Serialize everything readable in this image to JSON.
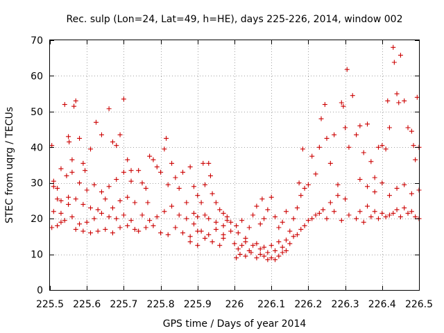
{
  "chart_data": {
    "type": "scatter",
    "title": "Rec. sulp (Lon=24, Lat=49, h=HE), days 225-226, 2014, window 002",
    "xlabel": "GPS time / Days of year 2014",
    "ylabel": "STEC from uqrg / TECUs",
    "xlim": [
      225.5,
      226.5
    ],
    "ylim": [
      0,
      70
    ],
    "xticks": [
      225.5,
      225.6,
      225.7,
      225.8,
      225.9,
      226,
      226.1,
      226.2,
      226.3,
      226.4,
      226.5
    ],
    "xtick_labels": [
      "225.5",
      "225.6",
      "225.7",
      "225.8",
      "225.9",
      "226",
      "226.1",
      "226.2",
      "226.3",
      "226.4",
      "226.5"
    ],
    "yticks": [
      0,
      10,
      20,
      30,
      40,
      50,
      60,
      70
    ],
    "ytick_labels": [
      "0",
      "10",
      "20",
      "30",
      "40",
      "50",
      "60",
      "70"
    ],
    "grid": true,
    "marker": "+",
    "color": "#cc0000",
    "series": [
      {
        "name": "STEC",
        "points": [
          [
            225.505,
            40.5
          ],
          [
            225.51,
            30.5
          ],
          [
            225.52,
            25.5
          ],
          [
            225.53,
            34.0
          ],
          [
            225.54,
            52.0
          ],
          [
            225.55,
            43.0
          ],
          [
            225.552,
            41.5
          ],
          [
            225.56,
            36.5
          ],
          [
            225.565,
            51.5
          ],
          [
            225.57,
            53.0
          ],
          [
            225.58,
            42.5
          ],
          [
            225.59,
            35.5
          ],
          [
            225.595,
            33.5
          ],
          [
            225.61,
            39.5
          ],
          [
            225.625,
            47.0
          ],
          [
            225.64,
            43.5
          ],
          [
            225.66,
            50.8
          ],
          [
            225.67,
            41.5
          ],
          [
            225.68,
            40.5
          ],
          [
            225.69,
            43.5
          ],
          [
            225.7,
            53.5
          ],
          [
            225.71,
            36.5
          ],
          [
            225.72,
            33.5
          ],
          [
            225.51,
            29.0
          ],
          [
            225.52,
            28.5
          ],
          [
            225.53,
            25.0
          ],
          [
            225.545,
            32.0
          ],
          [
            225.55,
            26.0
          ],
          [
            225.56,
            33.0
          ],
          [
            225.58,
            30.0
          ],
          [
            225.6,
            28.0
          ],
          [
            225.62,
            29.5
          ],
          [
            225.64,
            27.5
          ],
          [
            225.66,
            29.0
          ],
          [
            225.68,
            31.0
          ],
          [
            225.7,
            33.0
          ],
          [
            225.72,
            30.5
          ],
          [
            225.51,
            22.0
          ],
          [
            225.53,
            21.5
          ],
          [
            225.55,
            24.0
          ],
          [
            225.57,
            25.5
          ],
          [
            225.59,
            24.0
          ],
          [
            225.61,
            23.0
          ],
          [
            225.63,
            22.5
          ],
          [
            225.65,
            25.5
          ],
          [
            225.67,
            23.0
          ],
          [
            225.69,
            25.0
          ],
          [
            225.71,
            26.0
          ],
          [
            225.73,
            24.5
          ],
          [
            225.505,
            17.5
          ],
          [
            225.52,
            18.0
          ],
          [
            225.54,
            19.5
          ],
          [
            225.56,
            20.5
          ],
          [
            225.58,
            18.5
          ],
          [
            225.6,
            19.0
          ],
          [
            225.62,
            20.0
          ],
          [
            225.64,
            21.5
          ],
          [
            225.66,
            20.5
          ],
          [
            225.68,
            20.0
          ],
          [
            225.7,
            21.0
          ],
          [
            225.72,
            19.5
          ],
          [
            225.53,
            19.0
          ],
          [
            225.57,
            17.0
          ],
          [
            225.59,
            16.5
          ],
          [
            225.61,
            16.0
          ],
          [
            225.63,
            16.5
          ],
          [
            225.65,
            17.0
          ],
          [
            225.67,
            16.0
          ],
          [
            225.69,
            17.5
          ],
          [
            225.71,
            18.0
          ],
          [
            225.73,
            17.0
          ],
          [
            225.74,
            33.5
          ],
          [
            225.75,
            30.0
          ],
          [
            225.76,
            28.5
          ],
          [
            225.765,
            24.5
          ],
          [
            225.77,
            37.5
          ],
          [
            225.78,
            36.5
          ],
          [
            225.79,
            34.5
          ],
          [
            225.8,
            33.0
          ],
          [
            225.81,
            39.5
          ],
          [
            225.815,
            42.5
          ],
          [
            225.82,
            29.5
          ],
          [
            225.83,
            35.5
          ],
          [
            225.84,
            31.5
          ],
          [
            225.85,
            28.5
          ],
          [
            225.86,
            33.0
          ],
          [
            225.87,
            24.5
          ],
          [
            225.88,
            34.5
          ],
          [
            225.89,
            29.0
          ],
          [
            225.75,
            21.0
          ],
          [
            225.77,
            19.5
          ],
          [
            225.79,
            20.5
          ],
          [
            225.81,
            22.0
          ],
          [
            225.83,
            23.5
          ],
          [
            225.85,
            21.0
          ],
          [
            225.87,
            20.0
          ],
          [
            225.89,
            21.5
          ],
          [
            225.74,
            16.5
          ],
          [
            225.76,
            17.5
          ],
          [
            225.78,
            18.0
          ],
          [
            225.8,
            16.0
          ],
          [
            225.82,
            15.5
          ],
          [
            225.84,
            17.5
          ],
          [
            225.86,
            16.0
          ],
          [
            225.88,
            15.0
          ],
          [
            225.9,
            16.5
          ],
          [
            225.9,
            26.5
          ],
          [
            225.91,
            24.5
          ],
          [
            225.915,
            35.5
          ],
          [
            225.92,
            29.5
          ],
          [
            225.93,
            35.5
          ],
          [
            225.935,
            32.0
          ],
          [
            225.94,
            27.0
          ],
          [
            225.95,
            24.5
          ],
          [
            225.96,
            22.5
          ],
          [
            225.97,
            21.5
          ],
          [
            225.98,
            20.5
          ],
          [
            225.99,
            19.0
          ],
          [
            225.9,
            20.5
          ],
          [
            225.92,
            21.0
          ],
          [
            225.93,
            20.0
          ],
          [
            225.95,
            19.0
          ],
          [
            225.97,
            18.0
          ],
          [
            225.98,
            19.5
          ],
          [
            225.88,
            13.5
          ],
          [
            225.9,
            12.5
          ],
          [
            225.92,
            14.5
          ],
          [
            225.94,
            13.5
          ],
          [
            225.96,
            12.5
          ],
          [
            225.97,
            14.5
          ],
          [
            225.99,
            16.5
          ],
          [
            225.89,
            18.5
          ],
          [
            225.91,
            16.5
          ],
          [
            225.93,
            15.5
          ],
          [
            225.95,
            17.0
          ],
          [
            225.97,
            15.5
          ],
          [
            226.005,
            18.0
          ],
          [
            226.01,
            16.0
          ],
          [
            226.02,
            19.5
          ],
          [
            226.03,
            14.5
          ],
          [
            226.04,
            17.5
          ],
          [
            226.05,
            21.0
          ],
          [
            226.06,
            23.5
          ],
          [
            226.07,
            18.5
          ],
          [
            226.075,
            25.5
          ],
          [
            226.08,
            20.0
          ],
          [
            226.09,
            22.5
          ],
          [
            226.1,
            26.0
          ],
          [
            226.11,
            20.5
          ],
          [
            226.12,
            17.5
          ],
          [
            226.13,
            19.0
          ],
          [
            226.14,
            22.0
          ],
          [
            226.0,
            13.0
          ],
          [
            226.01,
            11.5
          ],
          [
            226.02,
            12.5
          ],
          [
            226.03,
            13.5
          ],
          [
            226.04,
            11.0
          ],
          [
            226.05,
            12.5
          ],
          [
            226.06,
            13.0
          ],
          [
            226.07,
            11.5
          ],
          [
            226.08,
            12.0
          ],
          [
            226.09,
            10.5
          ],
          [
            226.1,
            12.5
          ],
          [
            226.11,
            11.0
          ],
          [
            226.12,
            13.5
          ],
          [
            226.13,
            12.0
          ],
          [
            226.14,
            14.0
          ],
          [
            226.005,
            9.0
          ],
          [
            226.015,
            10.0
          ],
          [
            226.03,
            9.5
          ],
          [
            226.045,
            10.5
          ],
          [
            226.06,
            9.0
          ],
          [
            226.07,
            10.0
          ],
          [
            226.08,
            9.5
          ],
          [
            226.09,
            8.5
          ],
          [
            226.1,
            9.0
          ],
          [
            226.11,
            8.5
          ],
          [
            226.12,
            9.5
          ],
          [
            226.13,
            10.5
          ],
          [
            226.14,
            11.0
          ],
          [
            226.15,
            16.5
          ],
          [
            226.16,
            20.0
          ],
          [
            226.17,
            23.0
          ],
          [
            226.175,
            30.0
          ],
          [
            226.18,
            26.5
          ],
          [
            226.185,
            39.5
          ],
          [
            226.19,
            28.5
          ],
          [
            226.2,
            29.5
          ],
          [
            226.21,
            37.5
          ],
          [
            226.22,
            32.5
          ],
          [
            226.23,
            40.0
          ],
          [
            226.235,
            48.0
          ],
          [
            226.245,
            52.0
          ],
          [
            226.25,
            42.5
          ],
          [
            226.26,
            35.5
          ],
          [
            226.27,
            43.5
          ],
          [
            226.28,
            29.5
          ],
          [
            226.29,
            52.5
          ],
          [
            226.295,
            51.5
          ],
          [
            226.3,
            45.5
          ],
          [
            226.305,
            61.8
          ],
          [
            226.31,
            40.0
          ],
          [
            226.32,
            54.5
          ],
          [
            226.33,
            43.5
          ],
          [
            226.16,
            15.0
          ],
          [
            226.18,
            17.0
          ],
          [
            226.2,
            19.5
          ],
          [
            226.22,
            21.0
          ],
          [
            226.24,
            22.5
          ],
          [
            226.26,
            24.5
          ],
          [
            226.28,
            26.5
          ],
          [
            226.3,
            25.5
          ],
          [
            226.15,
            13.0
          ],
          [
            226.17,
            15.5
          ],
          [
            226.19,
            18.0
          ],
          [
            226.21,
            20.0
          ],
          [
            226.23,
            21.5
          ],
          [
            226.25,
            20.0
          ],
          [
            226.27,
            22.0
          ],
          [
            226.29,
            19.5
          ],
          [
            226.31,
            21.0
          ],
          [
            226.33,
            20.0
          ],
          [
            226.34,
            46.0
          ],
          [
            226.35,
            38.5
          ],
          [
            226.36,
            46.5
          ],
          [
            226.37,
            36.0
          ],
          [
            226.38,
            31.5
          ],
          [
            226.39,
            40.0
          ],
          [
            226.4,
            40.5
          ],
          [
            226.41,
            39.5
          ],
          [
            226.415,
            53.0
          ],
          [
            226.42,
            45.5
          ],
          [
            226.43,
            68.0
          ],
          [
            226.433,
            63.8
          ],
          [
            226.44,
            55.0
          ],
          [
            226.445,
            52.5
          ],
          [
            226.45,
            65.8
          ],
          [
            226.46,
            53.0
          ],
          [
            226.47,
            45.5
          ],
          [
            226.48,
            44.5
          ],
          [
            226.485,
            40.5
          ],
          [
            226.49,
            36.5
          ],
          [
            226.495,
            54.0
          ],
          [
            226.5,
            40.0
          ],
          [
            226.34,
            31.0
          ],
          [
            226.36,
            29.0
          ],
          [
            226.38,
            27.5
          ],
          [
            226.4,
            30.0
          ],
          [
            226.42,
            26.5
          ],
          [
            226.44,
            28.5
          ],
          [
            226.46,
            29.5
          ],
          [
            226.48,
            27.0
          ],
          [
            226.5,
            28.0
          ],
          [
            226.34,
            22.0
          ],
          [
            226.36,
            23.5
          ],
          [
            226.38,
            22.0
          ],
          [
            226.4,
            21.5
          ],
          [
            226.42,
            21.0
          ],
          [
            226.44,
            22.5
          ],
          [
            226.46,
            23.0
          ],
          [
            226.48,
            22.0
          ],
          [
            226.5,
            20.0
          ],
          [
            226.35,
            19.0
          ],
          [
            226.37,
            20.5
          ],
          [
            226.39,
            20.0
          ],
          [
            226.41,
            20.5
          ],
          [
            226.43,
            21.5
          ],
          [
            226.45,
            20.5
          ],
          [
            226.47,
            21.5
          ],
          [
            226.49,
            20.5
          ]
        ]
      }
    ]
  }
}
